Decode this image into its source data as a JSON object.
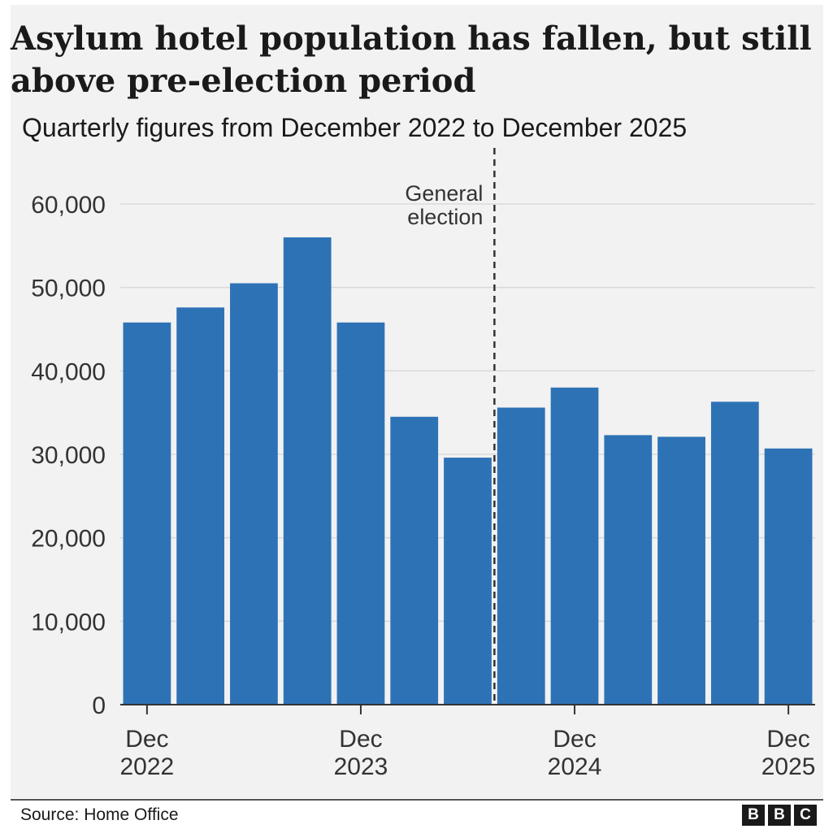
{
  "title": "Asylum hotel population has fallen, but still above pre-election period",
  "subtitle": "Quarterly figures from December 2022 to December 2025",
  "source": "Source: Home Office",
  "logo_letters": [
    "B",
    "B",
    "C"
  ],
  "colors": {
    "bar": "#2e72b6",
    "background": "#f2f2f2",
    "grid": "#d9d9d9",
    "text": "#1a1a1a"
  },
  "chart_data": {
    "type": "bar",
    "categories": [
      "Dec 2022",
      "Mar 2023",
      "Jun 2023",
      "Sep 2023",
      "Dec 2023",
      "Mar 2024",
      "Jun 2024",
      "Sep 2024",
      "Dec 2024",
      "Mar 2025",
      "Jun 2025",
      "Sep 2025",
      "Dec 2025"
    ],
    "values": [
      45800,
      47600,
      50500,
      56000,
      45800,
      34500,
      29600,
      35600,
      38000,
      32300,
      32100,
      36300,
      30700
    ],
    "ylim": [
      0,
      60000
    ],
    "yticks": [
      0,
      10000,
      20000,
      30000,
      40000,
      50000,
      60000
    ],
    "ytick_labels": [
      "0",
      "10,000",
      "20,000",
      "30,000",
      "40,000",
      "50,000",
      "60,000"
    ],
    "xtick_labels": [
      {
        "category": "Dec 2022",
        "line1": "Dec",
        "line2": "2022"
      },
      {
        "category": "Dec 2023",
        "line1": "Dec",
        "line2": "2023"
      },
      {
        "category": "Dec 2024",
        "line1": "Dec",
        "line2": "2024"
      },
      {
        "category": "Dec 2025",
        "line1": "Dec",
        "line2": "2025"
      }
    ],
    "annotation": {
      "line1": "General",
      "line2": "election",
      "between": [
        "Jun 2024",
        "Sep 2024"
      ]
    },
    "grid": true,
    "xlabel": "",
    "ylabel": ""
  }
}
